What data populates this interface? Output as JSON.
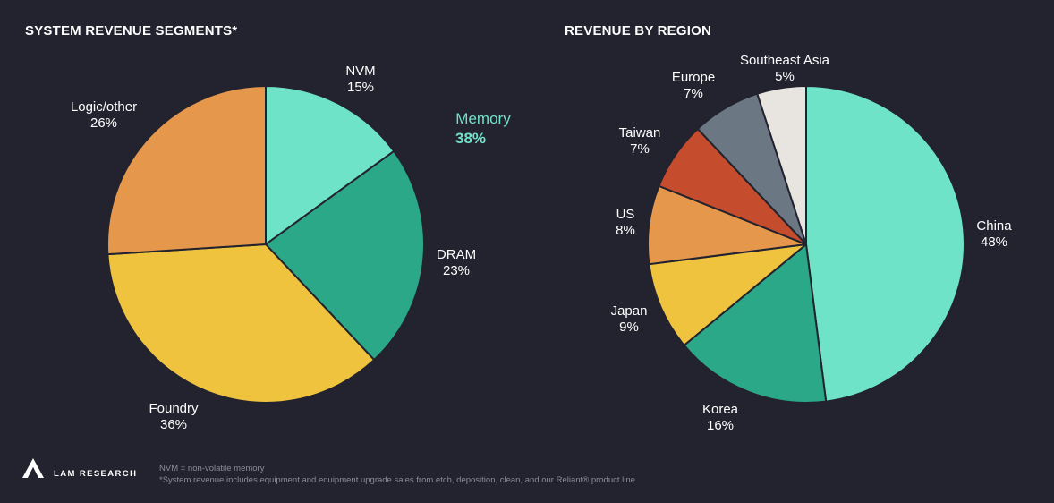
{
  "chart_data": [
    {
      "type": "pie",
      "title": "SYSTEM REVENUE SEGMENTS*",
      "slices": [
        {
          "label": "NVM",
          "value": 15,
          "display": "15%",
          "color": "#6fe3c8"
        },
        {
          "label": "DRAM",
          "value": 23,
          "display": "23%",
          "color": "#2aa888"
        },
        {
          "label": "Foundry",
          "value": 36,
          "display": "36%",
          "color": "#f0c33f"
        },
        {
          "label": "Logic/other",
          "value": 26,
          "display": "26%",
          "color": "#e5974b"
        }
      ],
      "annotation": {
        "label": "Memory",
        "value": "38%"
      }
    },
    {
      "type": "pie",
      "title": "REVENUE BY REGION",
      "slices": [
        {
          "label": "China",
          "value": 48,
          "display": "48%",
          "color": "#6fe3c8"
        },
        {
          "label": "Korea",
          "value": 16,
          "display": "16%",
          "color": "#2aa888"
        },
        {
          "label": "Japan",
          "value": 9,
          "display": "9%",
          "color": "#f0c33f"
        },
        {
          "label": "US",
          "value": 8,
          "display": "8%",
          "color": "#e5974b"
        },
        {
          "label": "Taiwan",
          "value": 7,
          "display": "7%",
          "color": "#c54c2c"
        },
        {
          "label": "Europe",
          "value": 7,
          "display": "7%",
          "color": "#6b7783"
        },
        {
          "label": "Southeast Asia",
          "value": 5,
          "display": "5%",
          "color": "#e8e4df"
        }
      ]
    }
  ],
  "footer": {
    "brand": "LAM RESEARCH",
    "note1": "NVM = non-volatile memory",
    "note2": "*System revenue includes equipment and equipment upgrade sales from etch, deposition, clean, and our Reliant® product line"
  }
}
